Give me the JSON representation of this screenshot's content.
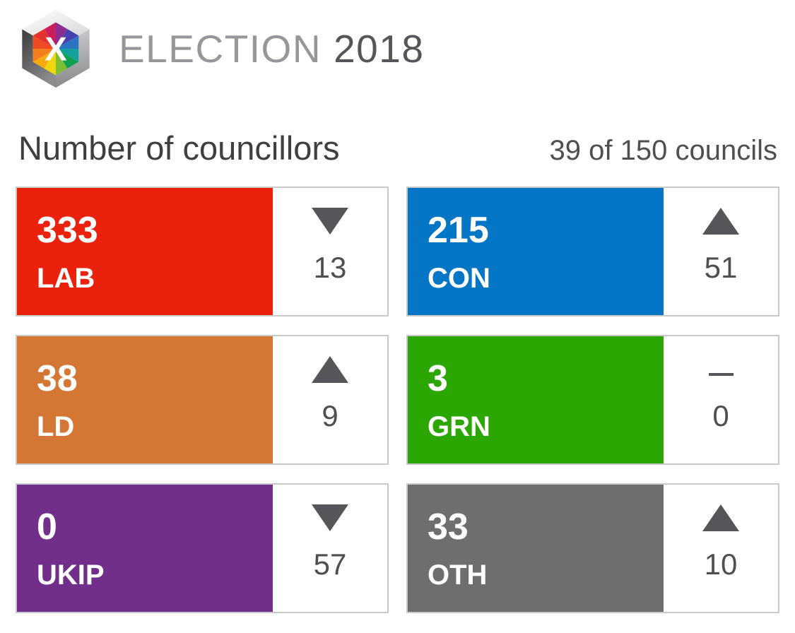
{
  "header": {
    "brand": "ELECTION",
    "year": "2018",
    "logo_letter": "X",
    "title": "Number of councillors",
    "progress": "39 of 150 councils"
  },
  "chart_data": {
    "type": "table",
    "title": "Number of councillors",
    "progress_label": "39 of 150 councils",
    "columns": [
      "party",
      "councillors",
      "change_direction",
      "change"
    ],
    "parties": [
      {
        "code": "LAB",
        "seats": 333,
        "change": 13,
        "change_dir": "down",
        "color": "#e9210d"
      },
      {
        "code": "CON",
        "seats": 215,
        "change": 51,
        "change_dir": "up",
        "color": "#0575c5"
      },
      {
        "code": "LD",
        "seats": 38,
        "change": 9,
        "change_dir": "up",
        "color": "#d47735"
      },
      {
        "code": "GRN",
        "seats": 3,
        "change": 0,
        "change_dir": "none",
        "color": "#2ca603"
      },
      {
        "code": "UKIP",
        "seats": 0,
        "change": 57,
        "change_dir": "down",
        "color": "#712e8a"
      },
      {
        "code": "OTH",
        "seats": 33,
        "change": 10,
        "change_dir": "up",
        "color": "#6e6e6e"
      }
    ]
  },
  "colors": {
    "card_border": "#c9c9c9",
    "indicator": "#54565a",
    "change_text": "#4f4f4f",
    "title_text": "#3f3f3f",
    "brand_light": "#97979b",
    "brand_dark": "#55555a"
  }
}
